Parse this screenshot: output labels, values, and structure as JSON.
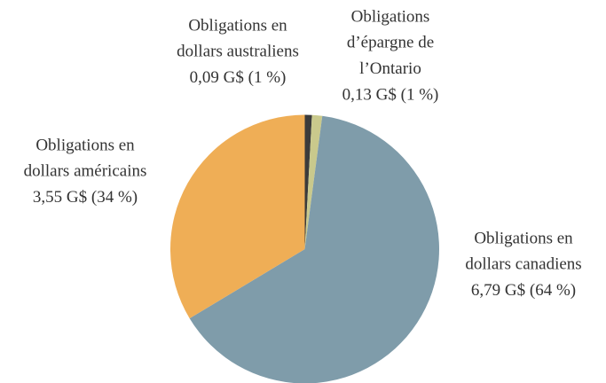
{
  "chart_data": {
    "type": "pie",
    "categories": [
      [
        "Obligations en",
        "dollars australiens"
      ],
      [
        "Obligations",
        "d’épargne de",
        "l’Ontario"
      ],
      [
        "Obligations en",
        "dollars canadiens"
      ],
      [
        "Obligations en",
        "dollars américains"
      ]
    ],
    "values": [
      0.09,
      0.13,
      6.79,
      3.55
    ],
    "value_labels": [
      "0,09 G$ (1 %)",
      "0,13 G$ (1 %)",
      "6,79 G$ (64 %)",
      "3,55 G$ (34 %)"
    ],
    "colors": [
      "#3b3b3b",
      "#c9c98c",
      "#7f9caa",
      "#efae56"
    ]
  }
}
